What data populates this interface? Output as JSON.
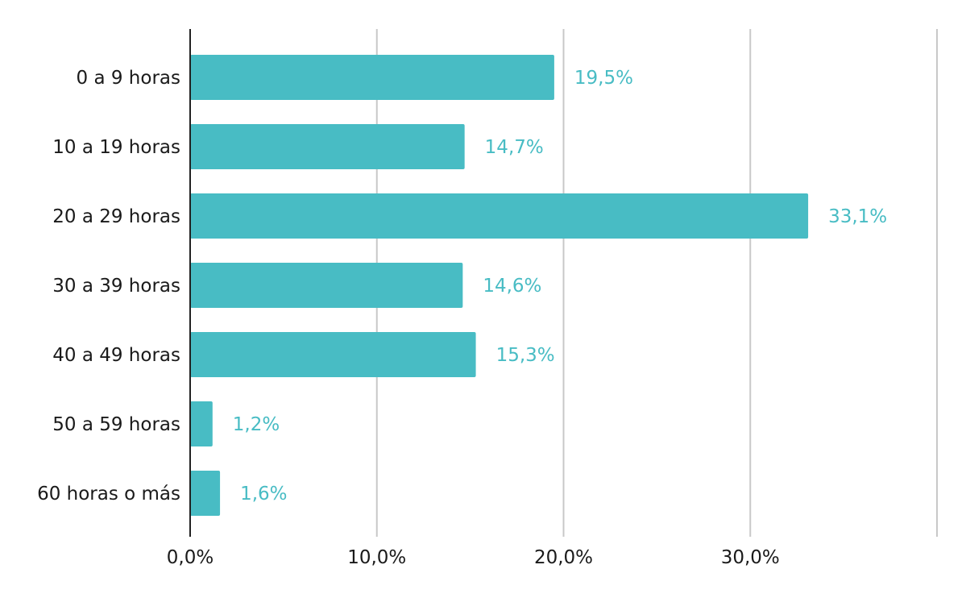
{
  "chart_data": {
    "type": "bar",
    "orientation": "horizontal",
    "categories": [
      "0 a 9 horas",
      "10 a 19 horas",
      "20 a 29 horas",
      "30 a 39 horas",
      "40 a 49 horas",
      "50 a 59 horas",
      "60 horas o más"
    ],
    "values": [
      19.5,
      14.7,
      33.1,
      14.6,
      15.3,
      1.2,
      1.6
    ],
    "value_labels": [
      "19,5%",
      "14,7%",
      "33,1%",
      "14,6%",
      "15,3%",
      "1,2%",
      "1,6%"
    ],
    "x_ticks": [
      0,
      10,
      20,
      30,
      40
    ],
    "x_tick_labels": [
      "0,0%",
      "10,0%",
      "20,0%",
      "30,0%",
      ""
    ],
    "xlim": [
      0,
      40
    ],
    "grid": true,
    "bar_color": "#48BCC4",
    "label_color": "#48BCC4"
  }
}
